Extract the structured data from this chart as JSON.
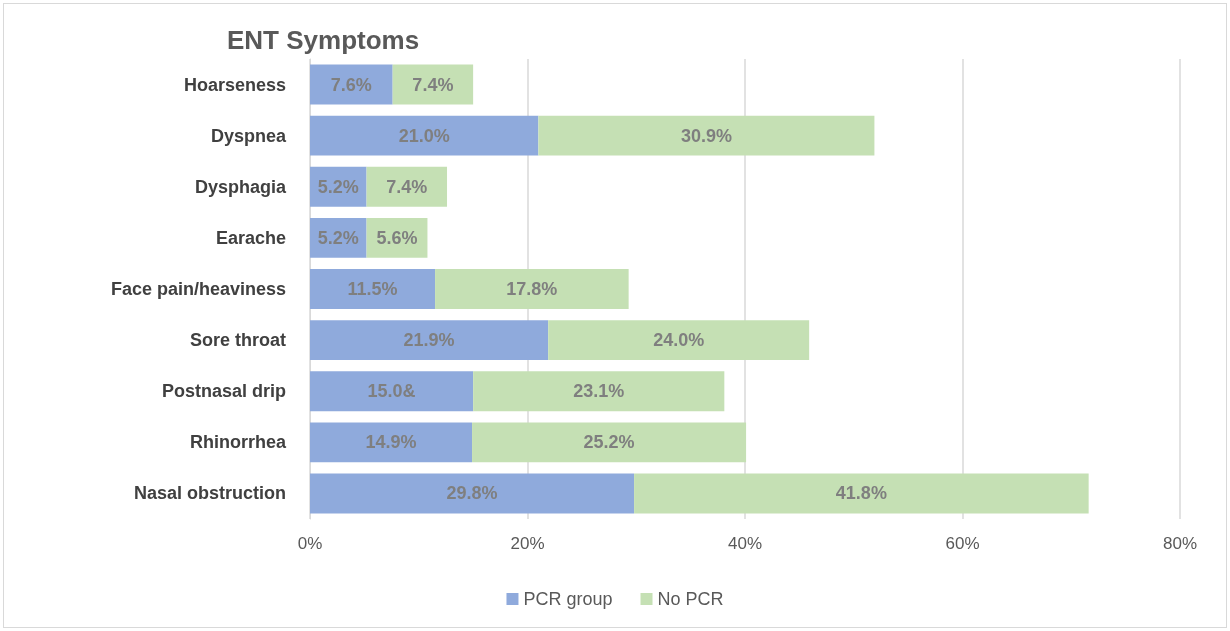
{
  "chart_data": {
    "type": "bar",
    "title": "ENT Symptoms",
    "orientation": "horizontal",
    "stacked": true,
    "categories": [
      "Hoarseness",
      "Dyspnea",
      "Dysphagia",
      "Earache",
      "Face pain/heaviness",
      "Sore throat",
      "Postnasal drip",
      "Rhinorrhea",
      "Nasal obstruction"
    ],
    "series": [
      {
        "name": "PCR group",
        "color": "#8faadc",
        "values": [
          7.6,
          21.0,
          5.2,
          5.2,
          11.5,
          21.9,
          15.0,
          14.9,
          29.8
        ],
        "value_labels": [
          "7.6%",
          "21.0%",
          "5.2%",
          "5.2%",
          "11.5%",
          "21.9%",
          "15.0&",
          "14.9%",
          "29.8%"
        ]
      },
      {
        "name": "No PCR",
        "color": "#c5e0b4",
        "values": [
          7.4,
          30.9,
          7.4,
          5.6,
          17.8,
          24.0,
          23.1,
          25.2,
          41.8
        ],
        "value_labels": [
          "7.4%",
          "30.9%",
          "7.4%",
          "5.6%",
          "17.8%",
          "24.0%",
          "23.1%",
          "25.2%",
          "41.8%"
        ]
      }
    ],
    "xlim": [
      0,
      80
    ],
    "xticks": [
      {
        "value": 0,
        "label": "0%"
      },
      {
        "value": 20,
        "label": "20%"
      },
      {
        "value": 40,
        "label": "40%"
      },
      {
        "value": 60,
        "label": "60%"
      },
      {
        "value": 80,
        "label": "80%"
      }
    ],
    "grid": "x",
    "legend": "bottom"
  }
}
